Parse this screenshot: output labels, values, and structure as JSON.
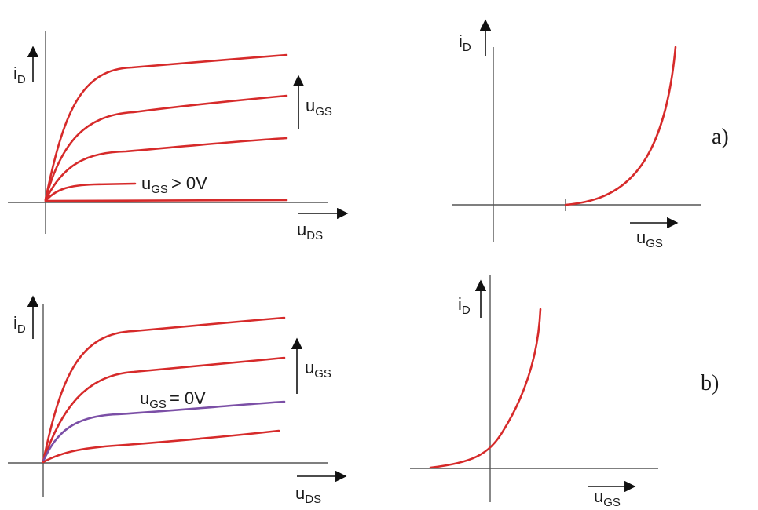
{
  "colors": {
    "curve": "#d62a2a",
    "highlight": "#7b4fa6",
    "axis": "#555555",
    "arrow": "#111111"
  },
  "labels": {
    "i": "i",
    "D": "D",
    "u": "u",
    "GS": "GS",
    "DS": "DS"
  },
  "panel_a": {
    "case_label": "a)",
    "output_annotation": "> 0V"
  },
  "panel_b": {
    "case_label": "b)",
    "output_annotation": "= 0V"
  }
}
